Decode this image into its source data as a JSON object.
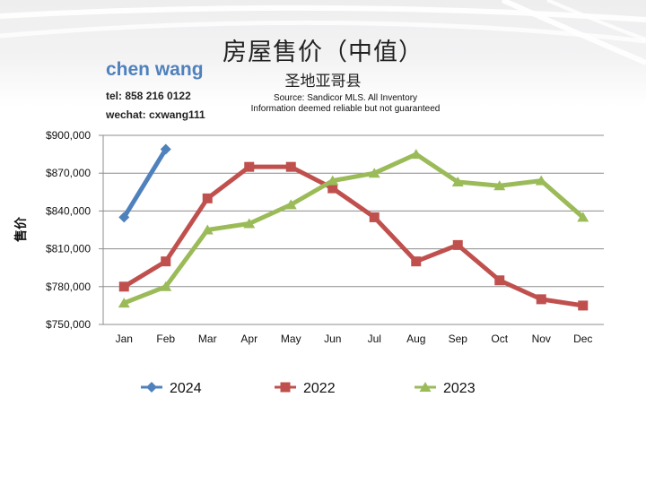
{
  "header": {
    "title": "房屋售价（中值）",
    "subtitle": "圣地亚哥县",
    "source_line1": "Source: Sandicor MLS. All Inventory",
    "source_line2": "Information deemed reliable but not guaranteed"
  },
  "agent": {
    "name": "chen wang",
    "tel": "tel: 858 216 0122",
    "wechat": "wechat: cxwang111"
  },
  "colors": {
    "s2024": "#4f81bd",
    "s2022": "#c0504d",
    "s2023": "#9bbb59",
    "grid": "#8c8c8c"
  },
  "chart_data": {
    "type": "line",
    "ylabel": "售价",
    "xlabel": "",
    "categories": [
      "Jan",
      "Feb",
      "Mar",
      "Apr",
      "May",
      "Jun",
      "Jul",
      "Aug",
      "Sep",
      "Oct",
      "Nov",
      "Dec"
    ],
    "ylim": [
      750000,
      900000
    ],
    "yticks": [
      750000,
      780000,
      810000,
      840000,
      870000,
      900000
    ],
    "ytick_labels": [
      "$750,000",
      "$780,000",
      "$810,000",
      "$840,000",
      "$870,000",
      "$900,000"
    ],
    "grid": true,
    "legend_position": "bottom",
    "series": [
      {
        "name": "2024",
        "marker": "diamond",
        "color": "#4f81bd",
        "values": [
          835000,
          889000,
          null,
          null,
          null,
          null,
          null,
          null,
          null,
          null,
          null,
          null
        ]
      },
      {
        "name": "2022",
        "marker": "square",
        "color": "#c0504d",
        "values": [
          780000,
          800000,
          850000,
          875000,
          875000,
          858000,
          835000,
          800000,
          813000,
          785000,
          770000,
          765000
        ]
      },
      {
        "name": "2023",
        "marker": "triangle",
        "color": "#9bbb59",
        "values": [
          767000,
          780000,
          825000,
          830000,
          845000,
          864000,
          870000,
          885000,
          863000,
          860000,
          864000,
          835000
        ]
      }
    ]
  }
}
